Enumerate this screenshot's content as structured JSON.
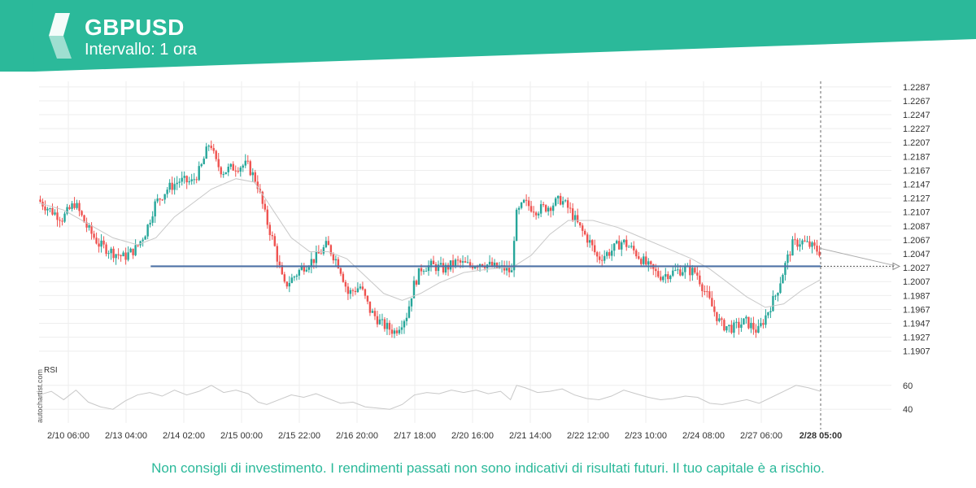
{
  "header": {
    "symbol": "GBPUSD",
    "interval": "Intervallo: 1 ora"
  },
  "colors": {
    "brand": "#2bb99a",
    "up": "#26a69a",
    "down": "#ef5350",
    "level_line": "#4a6fa5",
    "ma_line": "#c8c8c8",
    "rsi_line": "#c8c8c8"
  },
  "icons": {
    "logo": "autochartist-logo-icon"
  },
  "chart_data": {
    "type": "candlestick",
    "ylim": [
      1.1895,
      1.2295
    ],
    "y_ticks": [
      "1.2287",
      "1.2267",
      "1.2247",
      "1.2227",
      "1.2207",
      "1.2187",
      "1.2167",
      "1.2147",
      "1.2127",
      "1.2107",
      "1.2087",
      "1.2067",
      "1.2047",
      "1.2027",
      "1.2007",
      "1.1987",
      "1.1967",
      "1.1947",
      "1.1927",
      "1.1907"
    ],
    "x_ticks": [
      "2/10 06:00",
      "2/13 04:00",
      "2/14 02:00",
      "2/15 00:00",
      "2/15 22:00",
      "2/16 20:00",
      "2/17 18:00",
      "2/20 16:00",
      "2/21 14:00",
      "2/22 12:00",
      "2/23 10:00",
      "2/24 08:00",
      "2/27 06:00",
      "2/28 05:00"
    ],
    "current_label": "2/28 05:00",
    "grid": true,
    "close_path": [
      [
        0,
        1.2125
      ],
      [
        10,
        1.211
      ],
      [
        20,
        1.2098
      ],
      [
        30,
        1.212
      ],
      [
        40,
        1.2085
      ],
      [
        50,
        1.206
      ],
      [
        60,
        1.205
      ],
      [
        70,
        1.2042
      ],
      [
        80,
        1.2055
      ],
      [
        88,
        1.208
      ],
      [
        95,
        1.2118
      ],
      [
        105,
        1.214
      ],
      [
        115,
        1.2152
      ],
      [
        125,
        1.215
      ],
      [
        132,
        1.2168
      ],
      [
        140,
        1.221
      ],
      [
        144,
        1.218
      ],
      [
        150,
        1.2165
      ],
      [
        160,
        1.2172
      ],
      [
        170,
        1.2175
      ],
      [
        178,
        1.215
      ],
      [
        185,
        1.21
      ],
      [
        192,
        1.206
      ],
      [
        200,
        1.2
      ],
      [
        207,
        1.2012
      ],
      [
        215,
        1.2028
      ],
      [
        225,
        1.204
      ],
      [
        235,
        1.206
      ],
      [
        245,
        1.203
      ],
      [
        252,
        1.199
      ],
      [
        262,
        1.2
      ],
      [
        270,
        1.1965
      ],
      [
        280,
        1.1945
      ],
      [
        290,
        1.1935
      ],
      [
        300,
        1.196
      ],
      [
        305,
        1.2
      ],
      [
        312,
        1.2028
      ],
      [
        320,
        1.203
      ],
      [
        330,
        1.2025
      ],
      [
        340,
        1.2035
      ],
      [
        350,
        1.203
      ],
      [
        360,
        1.2035
      ],
      [
        370,
        1.2028
      ],
      [
        380,
        1.2025
      ],
      [
        385,
        1.202
      ],
      [
        388,
        1.21
      ],
      [
        395,
        1.212
      ],
      [
        405,
        1.211
      ],
      [
        415,
        1.2115
      ],
      [
        425,
        1.2125
      ],
      [
        432,
        1.211
      ],
      [
        440,
        1.2085
      ],
      [
        448,
        1.2065
      ],
      [
        455,
        1.204
      ],
      [
        465,
        1.205
      ],
      [
        475,
        1.2065
      ],
      [
        485,
        1.205
      ],
      [
        495,
        1.203
      ],
      [
        505,
        1.2015
      ],
      [
        515,
        1.202
      ],
      [
        525,
        1.2025
      ],
      [
        535,
        1.202
      ],
      [
        540,
        1.2
      ],
      [
        548,
        1.197
      ],
      [
        555,
        1.1945
      ],
      [
        565,
        1.194
      ],
      [
        575,
        1.195
      ],
      [
        585,
        1.1935
      ],
      [
        592,
        1.196
      ],
      [
        600,
        1.199
      ],
      [
        607,
        1.203
      ],
      [
        613,
        1.206
      ],
      [
        620,
        1.2065
      ],
      [
        628,
        1.2058
      ],
      [
        635,
        1.205
      ]
    ],
    "ma_path": [
      [
        0,
        1.212
      ],
      [
        20,
        1.211
      ],
      [
        40,
        1.209
      ],
      [
        60,
        1.207
      ],
      [
        80,
        1.206
      ],
      [
        95,
        1.207
      ],
      [
        110,
        1.21
      ],
      [
        125,
        1.212
      ],
      [
        140,
        1.214
      ],
      [
        160,
        1.2155
      ],
      [
        175,
        1.215
      ],
      [
        190,
        1.211
      ],
      [
        205,
        1.207
      ],
      [
        220,
        1.205
      ],
      [
        235,
        1.205
      ],
      [
        250,
        1.204
      ],
      [
        265,
        1.2015
      ],
      [
        280,
        1.199
      ],
      [
        295,
        1.198
      ],
      [
        310,
        1.199
      ],
      [
        325,
        1.2005
      ],
      [
        345,
        1.202
      ],
      [
        365,
        1.2025
      ],
      [
        385,
        1.2028
      ],
      [
        400,
        1.2045
      ],
      [
        415,
        1.2075
      ],
      [
        430,
        1.2095
      ],
      [
        450,
        1.2095
      ],
      [
        470,
        1.2085
      ],
      [
        490,
        1.207
      ],
      [
        510,
        1.2055
      ],
      [
        530,
        1.204
      ],
      [
        545,
        1.2025
      ],
      [
        560,
        1.2005
      ],
      [
        575,
        1.1985
      ],
      [
        590,
        1.197
      ],
      [
        605,
        1.1975
      ],
      [
        620,
        1.1995
      ],
      [
        635,
        1.201
      ]
    ],
    "level": 1.2029,
    "level_start_pct": 0.089,
    "projection_end": 1.203,
    "rsi": {
      "label": "RSI",
      "ticks": [
        60,
        40
      ],
      "ylim": [
        32,
        68
      ],
      "path": [
        [
          0,
          52
        ],
        [
          10,
          55
        ],
        [
          20,
          48
        ],
        [
          30,
          56
        ],
        [
          40,
          46
        ],
        [
          50,
          42
        ],
        [
          60,
          40
        ],
        [
          70,
          47
        ],
        [
          80,
          52
        ],
        [
          90,
          54
        ],
        [
          100,
          51
        ],
        [
          110,
          56
        ],
        [
          120,
          52
        ],
        [
          130,
          55
        ],
        [
          140,
          60
        ],
        [
          150,
          54
        ],
        [
          160,
          56
        ],
        [
          170,
          53
        ],
        [
          178,
          46
        ],
        [
          185,
          44
        ],
        [
          195,
          48
        ],
        [
          205,
          52
        ],
        [
          215,
          50
        ],
        [
          225,
          53
        ],
        [
          235,
          49
        ],
        [
          245,
          45
        ],
        [
          255,
          46
        ],
        [
          265,
          42
        ],
        [
          275,
          41
        ],
        [
          285,
          40
        ],
        [
          295,
          44
        ],
        [
          305,
          52
        ],
        [
          315,
          54
        ],
        [
          325,
          53
        ],
        [
          335,
          56
        ],
        [
          345,
          54
        ],
        [
          355,
          56
        ],
        [
          365,
          53
        ],
        [
          375,
          55
        ],
        [
          383,
          48
        ],
        [
          388,
          60
        ],
        [
          395,
          58
        ],
        [
          405,
          54
        ],
        [
          415,
          55
        ],
        [
          425,
          57
        ],
        [
          435,
          52
        ],
        [
          445,
          49
        ],
        [
          455,
          48
        ],
        [
          465,
          51
        ],
        [
          475,
          56
        ],
        [
          485,
          53
        ],
        [
          495,
          50
        ],
        [
          505,
          48
        ],
        [
          515,
          49
        ],
        [
          525,
          51
        ],
        [
          535,
          50
        ],
        [
          545,
          45
        ],
        [
          555,
          44
        ],
        [
          565,
          46
        ],
        [
          575,
          48
        ],
        [
          585,
          45
        ],
        [
          595,
          50
        ],
        [
          605,
          55
        ],
        [
          615,
          60
        ],
        [
          625,
          58
        ],
        [
          635,
          55
        ]
      ]
    }
  },
  "footer": {
    "disclaimer": "Non consigli di investimento. I rendimenti passati non sono indicativi di risultati futuri. Il tuo capitale è a rischio.",
    "watermark": "autochartist.com"
  }
}
